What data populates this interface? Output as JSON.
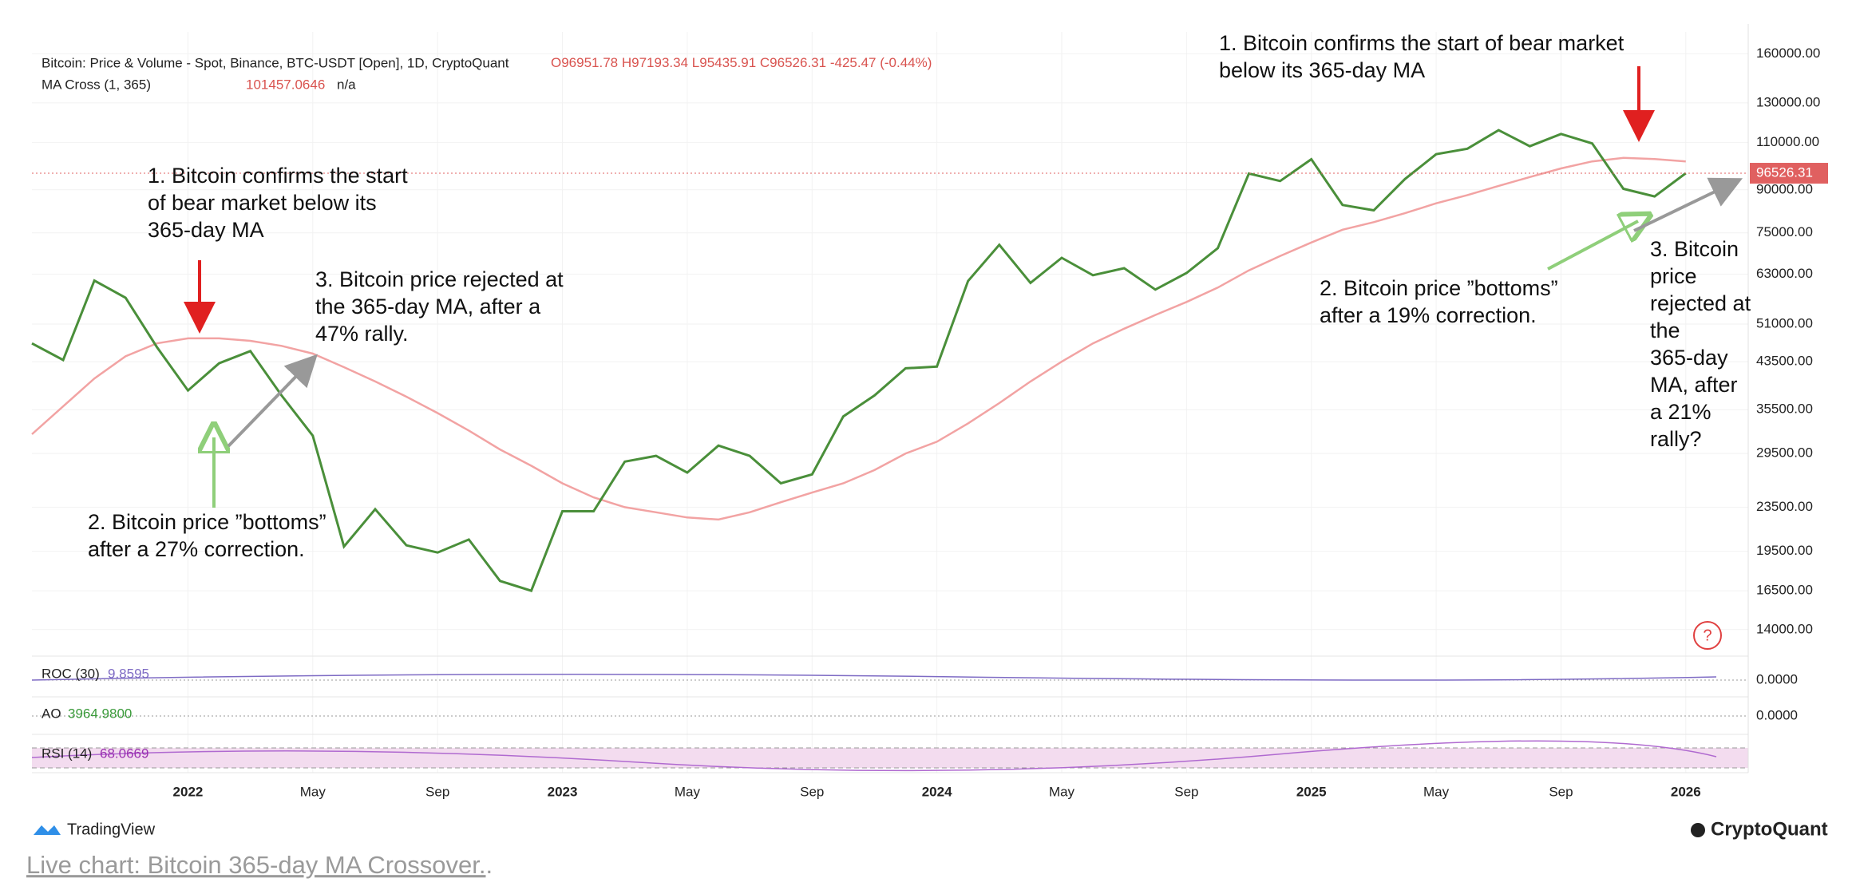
{
  "header": {
    "title": "Bitcoin: Price & Volume - Spot, Binance, BTC-USDT [Open], 1D, CryptoQuant",
    "open": "O96951.78",
    "high": "H97193.34",
    "low": "L95435.91",
    "close": "C96526.31",
    "change": "-425.47 (-0.44%)",
    "ma_name": "MA Cross (1, 365)",
    "ma_value": "101457.0646",
    "ma_extra": "n/a"
  },
  "chart_data": {
    "type": "line",
    "log_scale": true,
    "grid": true,
    "x": [
      "2021-08",
      "2021-09",
      "2021-10",
      "2021-11",
      "2021-12",
      "2022-01",
      "2022-02",
      "2022-03",
      "2022-04",
      "2022-05",
      "2022-06",
      "2022-07",
      "2022-08",
      "2022-09",
      "2022-10",
      "2022-11",
      "2022-12",
      "2023-01",
      "2023-02",
      "2023-03",
      "2023-04",
      "2023-05",
      "2023-06",
      "2023-07",
      "2023-08",
      "2023-09",
      "2023-10",
      "2023-11",
      "2023-12",
      "2024-01",
      "2024-02",
      "2024-03",
      "2024-04",
      "2024-05",
      "2024-06",
      "2024-07",
      "2024-08",
      "2024-09",
      "2024-10",
      "2024-11",
      "2024-12",
      "2025-01",
      "2025-02",
      "2025-03",
      "2025-04",
      "2025-05",
      "2025-06",
      "2025-07",
      "2025-08",
      "2025-09",
      "2025-10",
      "2025-11",
      "2025-12",
      "2026-01"
    ],
    "series": [
      {
        "name": "Price",
        "color": "#4a8f3a",
        "values": [
          47000,
          43800,
          61300,
          57000,
          46300,
          38500,
          43200,
          45500,
          37700,
          31800,
          19900,
          23300,
          20000,
          19400,
          20500,
          17200,
          16500,
          23100,
          23100,
          28500,
          29200,
          27200,
          30500,
          29200,
          26000,
          27000,
          34500,
          37700,
          42300,
          42600,
          61200,
          71300,
          60700,
          67500,
          62700,
          64600,
          59000,
          63300,
          70300,
          96400,
          93400,
          102400,
          84400,
          82500,
          94200,
          104600,
          107100,
          115800,
          108200,
          114000,
          109500,
          90400,
          87500,
          96526.31
        ]
      },
      {
        "name": "365-day MA",
        "color": "#f2a3a3",
        "values": [
          32000,
          36000,
          40500,
          44500,
          47000,
          48000,
          48000,
          47500,
          46500,
          45000,
          42500,
          40000,
          37500,
          35000,
          32500,
          30000,
          28000,
          26000,
          24500,
          23500,
          23000,
          22500,
          22300,
          23000,
          24000,
          25000,
          26000,
          27500,
          29500,
          31000,
          33500,
          36500,
          40000,
          43500,
          47000,
          50000,
          53000,
          56000,
          59500,
          64000,
          68000,
          72000,
          76000,
          78500,
          81500,
          85000,
          88000,
          91500,
          95000,
          98500,
          101500,
          103000,
          102500,
          101457.0646
        ]
      }
    ],
    "xlim": [
      "2021-08",
      "2026-03"
    ],
    "xticks": [
      {
        "value": "2022-01",
        "label": "2022"
      },
      {
        "value": "2022-05",
        "label": "May"
      },
      {
        "value": "2022-09",
        "label": "Sep"
      },
      {
        "value": "2023-01",
        "label": "2023"
      },
      {
        "value": "2023-05",
        "label": "May"
      },
      {
        "value": "2023-09",
        "label": "Sep"
      },
      {
        "value": "2024-01",
        "label": "2024"
      },
      {
        "value": "2024-05",
        "label": "May"
      },
      {
        "value": "2024-09",
        "label": "Sep"
      },
      {
        "value": "2025-01",
        "label": "2025"
      },
      {
        "value": "2025-05",
        "label": "May"
      },
      {
        "value": "2025-09",
        "label": "Sep"
      },
      {
        "value": "2026-01",
        "label": "2026"
      }
    ],
    "ylim": [
      12600,
      175500
    ],
    "yticks": [
      {
        "value": 14000,
        "label": "14000.00"
      },
      {
        "value": 16500,
        "label": "16500.00"
      },
      {
        "value": 19500,
        "label": "19500.00"
      },
      {
        "value": 23500,
        "label": "23500.00"
      },
      {
        "value": 29500,
        "label": "29500.00"
      },
      {
        "value": 35500,
        "label": "35500.00"
      },
      {
        "value": 43500,
        "label": "43500.00"
      },
      {
        "value": 51000,
        "label": "51000.00"
      },
      {
        "value": 63000,
        "label": "63000.00"
      },
      {
        "value": 75000,
        "label": "75000.00"
      },
      {
        "value": 90000,
        "label": "90000.00"
      },
      {
        "value": 110000,
        "label": "110000.00"
      },
      {
        "value": 130000,
        "label": "130000.00"
      },
      {
        "value": 160000,
        "label": "160000.00"
      }
    ],
    "last_price": 96526.31,
    "annotations": [
      {
        "lines": [
          "1. Bitcoin confirms the start",
          "of bear market below its",
          "365-day MA"
        ]
      },
      {
        "lines": [
          "3. Bitcoin price rejected at",
          "the 365-day MA, after a",
          "47% rally."
        ]
      },
      {
        "lines": [
          "2. Bitcoin price ”bottoms”",
          "after a 27% correction."
        ]
      },
      {
        "lines": [
          "1. Bitcoin confirms the start of bear market",
          "below its 365-day MA"
        ]
      },
      {
        "lines": [
          "2. Bitcoin price ”bottoms”",
          "after a 19% correction."
        ]
      },
      {
        "lines": [
          "3. Bitcoin",
          "price",
          "rejected at",
          "the",
          "365-day",
          "MA, after",
          "a 21%",
          "rally?"
        ]
      }
    ]
  },
  "indicators": [
    {
      "name": "ROC (30)",
      "value": "9.8595",
      "axis_label": "0.0000"
    },
    {
      "name": "AO",
      "value": "3964.9800",
      "axis_label": "0.0000"
    },
    {
      "name": "RSI (14)",
      "value": "68.0669"
    }
  ],
  "help_icon": "?",
  "footer": {
    "left": "TradingView",
    "right": "CryptoQuant",
    "link": "Live chart: Bitcoin 365-day MA Crossover.",
    "link_tail": "."
  }
}
